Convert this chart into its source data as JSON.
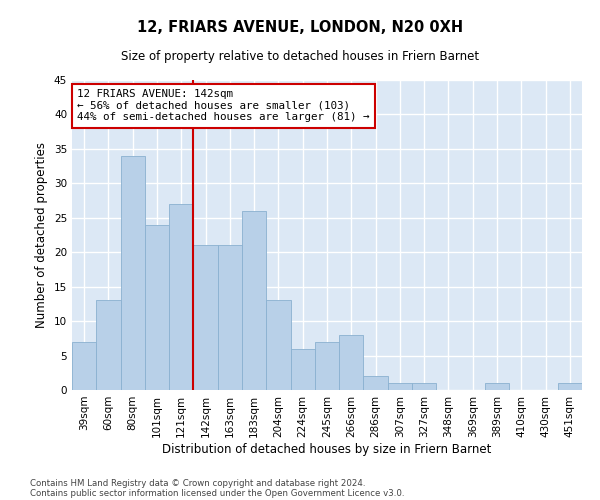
{
  "title": "12, FRIARS AVENUE, LONDON, N20 0XH",
  "subtitle": "Size of property relative to detached houses in Friern Barnet",
  "xlabel": "Distribution of detached houses by size in Friern Barnet",
  "ylabel": "Number of detached properties",
  "categories": [
    "39sqm",
    "60sqm",
    "80sqm",
    "101sqm",
    "121sqm",
    "142sqm",
    "163sqm",
    "183sqm",
    "204sqm",
    "224sqm",
    "245sqm",
    "266sqm",
    "286sqm",
    "307sqm",
    "327sqm",
    "348sqm",
    "369sqm",
    "389sqm",
    "410sqm",
    "430sqm",
    "451sqm"
  ],
  "values": [
    7,
    13,
    34,
    24,
    27,
    21,
    21,
    26,
    13,
    6,
    7,
    8,
    2,
    1,
    1,
    0,
    0,
    1,
    0,
    0,
    1
  ],
  "bar_color": "#b8d0e8",
  "bar_edgecolor": "#8ab0d0",
  "vline_x": 4.5,
  "vline_color": "#cc0000",
  "annotation_text": "12 FRIARS AVENUE: 142sqm\n← 56% of detached houses are smaller (103)\n44% of semi-detached houses are larger (81) →",
  "annotation_box_color": "#ffffff",
  "annotation_box_edgecolor": "#cc0000",
  "ylim": [
    0,
    45
  ],
  "yticks": [
    0,
    5,
    10,
    15,
    20,
    25,
    30,
    35,
    40,
    45
  ],
  "background_color": "#dce8f5",
  "footer1": "Contains HM Land Registry data © Crown copyright and database right 2024.",
  "footer2": "Contains public sector information licensed under the Open Government Licence v3.0."
}
